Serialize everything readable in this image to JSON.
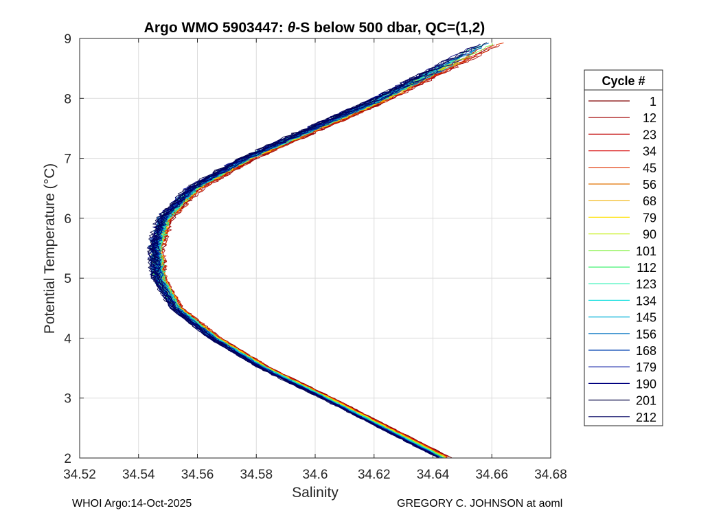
{
  "chart_data": {
    "type": "line",
    "title_prefix": "Argo WMO 5903447: ",
    "title_theta": "θ",
    "title_suffix": "-S below 500 dbar,  QC=(1,2)",
    "xlabel": "Salinity",
    "ylabel": "Potential Temperature (°C)",
    "xlim": [
      34.52,
      34.68
    ],
    "ylim": [
      2,
      9
    ],
    "xticks": [
      34.52,
      34.54,
      34.56,
      34.58,
      34.6,
      34.62,
      34.64,
      34.66,
      34.68
    ],
    "xtick_labels": [
      "34.52",
      "34.54",
      "34.56",
      "34.58",
      "34.6",
      "34.62",
      "34.64",
      "34.66",
      "34.68"
    ],
    "yticks": [
      2,
      3,
      4,
      5,
      6,
      7,
      8,
      9
    ],
    "ytick_labels": [
      "2",
      "3",
      "4",
      "5",
      "6",
      "7",
      "8",
      "9"
    ],
    "grid": true,
    "legend_title": "Cycle #",
    "legend_position": "outside-right",
    "legend": [
      {
        "cycle": "1",
        "color": "#800000"
      },
      {
        "cycle": "12",
        "color": "#A00000"
      },
      {
        "cycle": "23",
        "color": "#C00000"
      },
      {
        "cycle": "34",
        "color": "#D81010"
      },
      {
        "cycle": "45",
        "color": "#E03000"
      },
      {
        "cycle": "56",
        "color": "#E07000"
      },
      {
        "cycle": "68",
        "color": "#F0B000"
      },
      {
        "cycle": "79",
        "color": "#FFE000"
      },
      {
        "cycle": "90",
        "color": "#C8F020"
      },
      {
        "cycle": "101",
        "color": "#80F040"
      },
      {
        "cycle": "112",
        "color": "#40F070"
      },
      {
        "cycle": "123",
        "color": "#20F0B0"
      },
      {
        "cycle": "134",
        "color": "#20E0E0"
      },
      {
        "cycle": "145",
        "color": "#00B0D8"
      },
      {
        "cycle": "156",
        "color": "#0070C0"
      },
      {
        "cycle": "168",
        "color": "#0040B0"
      },
      {
        "cycle": "179",
        "color": "#0010A0"
      },
      {
        "cycle": "190",
        "color": "#000080"
      },
      {
        "cycle": "201",
        "color": "#000040"
      },
      {
        "cycle": "212",
        "color": "#000060"
      }
    ],
    "profile_shape": {
      "theta": [
        2.0,
        2.5,
        3.0,
        3.5,
        4.0,
        4.5,
        5.0,
        5.5,
        6.0,
        6.5,
        7.0,
        7.5,
        8.0,
        8.5
      ],
      "salinity": [
        34.644,
        34.624,
        34.604,
        34.583,
        34.566,
        34.553,
        34.547,
        34.546,
        34.549,
        34.559,
        34.577,
        34.6,
        34.623,
        34.643
      ]
    }
  },
  "footer": {
    "left": "WHOI Argo:14-Oct-2025",
    "right": "GREGORY C. JOHNSON at aoml"
  }
}
